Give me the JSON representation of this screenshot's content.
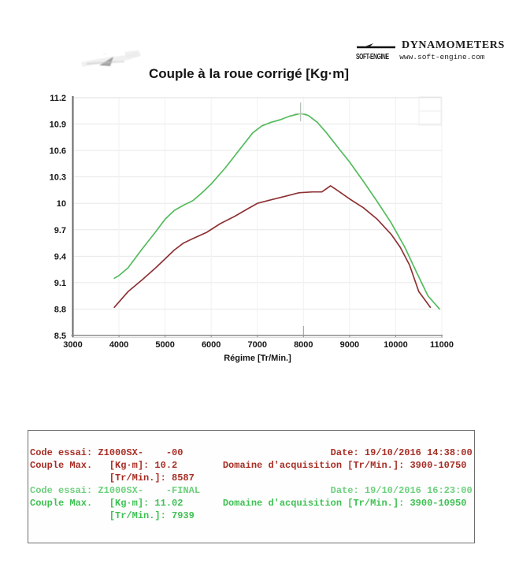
{
  "header": {
    "brand_title": "DYNAMOMETERS",
    "brand_mark": "SOFT-ENGINE",
    "brand_url": "www.soft-engine.com"
  },
  "chart_data": {
    "type": "line",
    "title": "Couple à la roue corrigé [Kg·m]",
    "xlabel": "Régime [Tr/Min.]",
    "ylabel": "",
    "xlim": [
      3000,
      11000
    ],
    "ylim": [
      8.5,
      11.2
    ],
    "x_ticks": [
      3000,
      4000,
      5000,
      6000,
      7000,
      8000,
      9000,
      10000,
      11000
    ],
    "y_ticks": [
      8.5,
      8.8,
      9.1,
      9.4,
      9.7,
      10,
      10.3,
      10.6,
      10.9,
      11.2
    ],
    "grid": true,
    "legend_position": "none",
    "cursor": {
      "x": 7939,
      "y": 11.02
    },
    "series": [
      {
        "name": "Z1000SX- -00",
        "color": "#8e3134",
        "max_kgm": 10.2,
        "max_rpm": 8587,
        "domain_rpm": [
          3900,
          10750
        ],
        "points": [
          [
            3900,
            8.82
          ],
          [
            4200,
            9.0
          ],
          [
            4500,
            9.13
          ],
          [
            4800,
            9.27
          ],
          [
            5000,
            9.37
          ],
          [
            5200,
            9.47
          ],
          [
            5400,
            9.55
          ],
          [
            5600,
            9.6
          ],
          [
            5900,
            9.67
          ],
          [
            6200,
            9.77
          ],
          [
            6500,
            9.85
          ],
          [
            6800,
            9.94
          ],
          [
            7000,
            10.0
          ],
          [
            7300,
            10.04
          ],
          [
            7600,
            10.08
          ],
          [
            7900,
            10.12
          ],
          [
            8200,
            10.13
          ],
          [
            8400,
            10.13
          ],
          [
            8587,
            10.2
          ],
          [
            8700,
            10.16
          ],
          [
            9000,
            10.05
          ],
          [
            9300,
            9.95
          ],
          [
            9600,
            9.82
          ],
          [
            9900,
            9.65
          ],
          [
            10100,
            9.5
          ],
          [
            10300,
            9.3
          ],
          [
            10500,
            9.0
          ],
          [
            10750,
            8.82
          ]
        ]
      },
      {
        "name": "Z1000SX- -FINAL",
        "color": "#54bb5d",
        "max_kgm": 11.02,
        "max_rpm": 7939,
        "domain_rpm": [
          3900,
          10950
        ],
        "points": [
          [
            3900,
            9.15
          ],
          [
            4000,
            9.18
          ],
          [
            4200,
            9.27
          ],
          [
            4500,
            9.48
          ],
          [
            4800,
            9.68
          ],
          [
            5000,
            9.82
          ],
          [
            5200,
            9.92
          ],
          [
            5400,
            9.98
          ],
          [
            5600,
            10.03
          ],
          [
            5800,
            10.12
          ],
          [
            6000,
            10.22
          ],
          [
            6300,
            10.4
          ],
          [
            6600,
            10.6
          ],
          [
            6900,
            10.8
          ],
          [
            7100,
            10.88
          ],
          [
            7300,
            10.92
          ],
          [
            7500,
            10.95
          ],
          [
            7700,
            10.99
          ],
          [
            7939,
            11.02
          ],
          [
            8100,
            11.0
          ],
          [
            8300,
            10.92
          ],
          [
            8500,
            10.8
          ],
          [
            8800,
            10.6
          ],
          [
            9000,
            10.47
          ],
          [
            9300,
            10.25
          ],
          [
            9600,
            10.02
          ],
          [
            9900,
            9.78
          ],
          [
            10200,
            9.5
          ],
          [
            10450,
            9.22
          ],
          [
            10700,
            8.95
          ],
          [
            10950,
            8.8
          ]
        ]
      }
    ]
  },
  "infobox": {
    "lines": [
      {
        "text": "Code essai: Z1000SX-    -00                          Date: 19/10/2016 14:38:00",
        "color": "#a72d24",
        "faded": false
      },
      {
        "text": "Couple Max.   [Kg·m]: 10.2        Domaine d'acquisition [Tr/Min.]: 3900-10750",
        "color": "#a72d24",
        "faded": false
      },
      {
        "text": "              [Tr/Min.]: 8587",
        "color": "#a72d24",
        "faded": false
      },
      {
        "text": "Code essai: Z1000SX-    -FINAL                       Date: 19/10/2016 16:23:00",
        "color": "#3ec153",
        "faded": true
      },
      {
        "text": "Couple Max.   [Kg·m]: 11.02       Domaine d'acquisition [Tr/Min.]: 3900-10950",
        "color": "#3ec153",
        "faded": false
      },
      {
        "text": "              [Tr/Min.]: 7939",
        "color": "#3ec153",
        "faded": false
      }
    ]
  }
}
